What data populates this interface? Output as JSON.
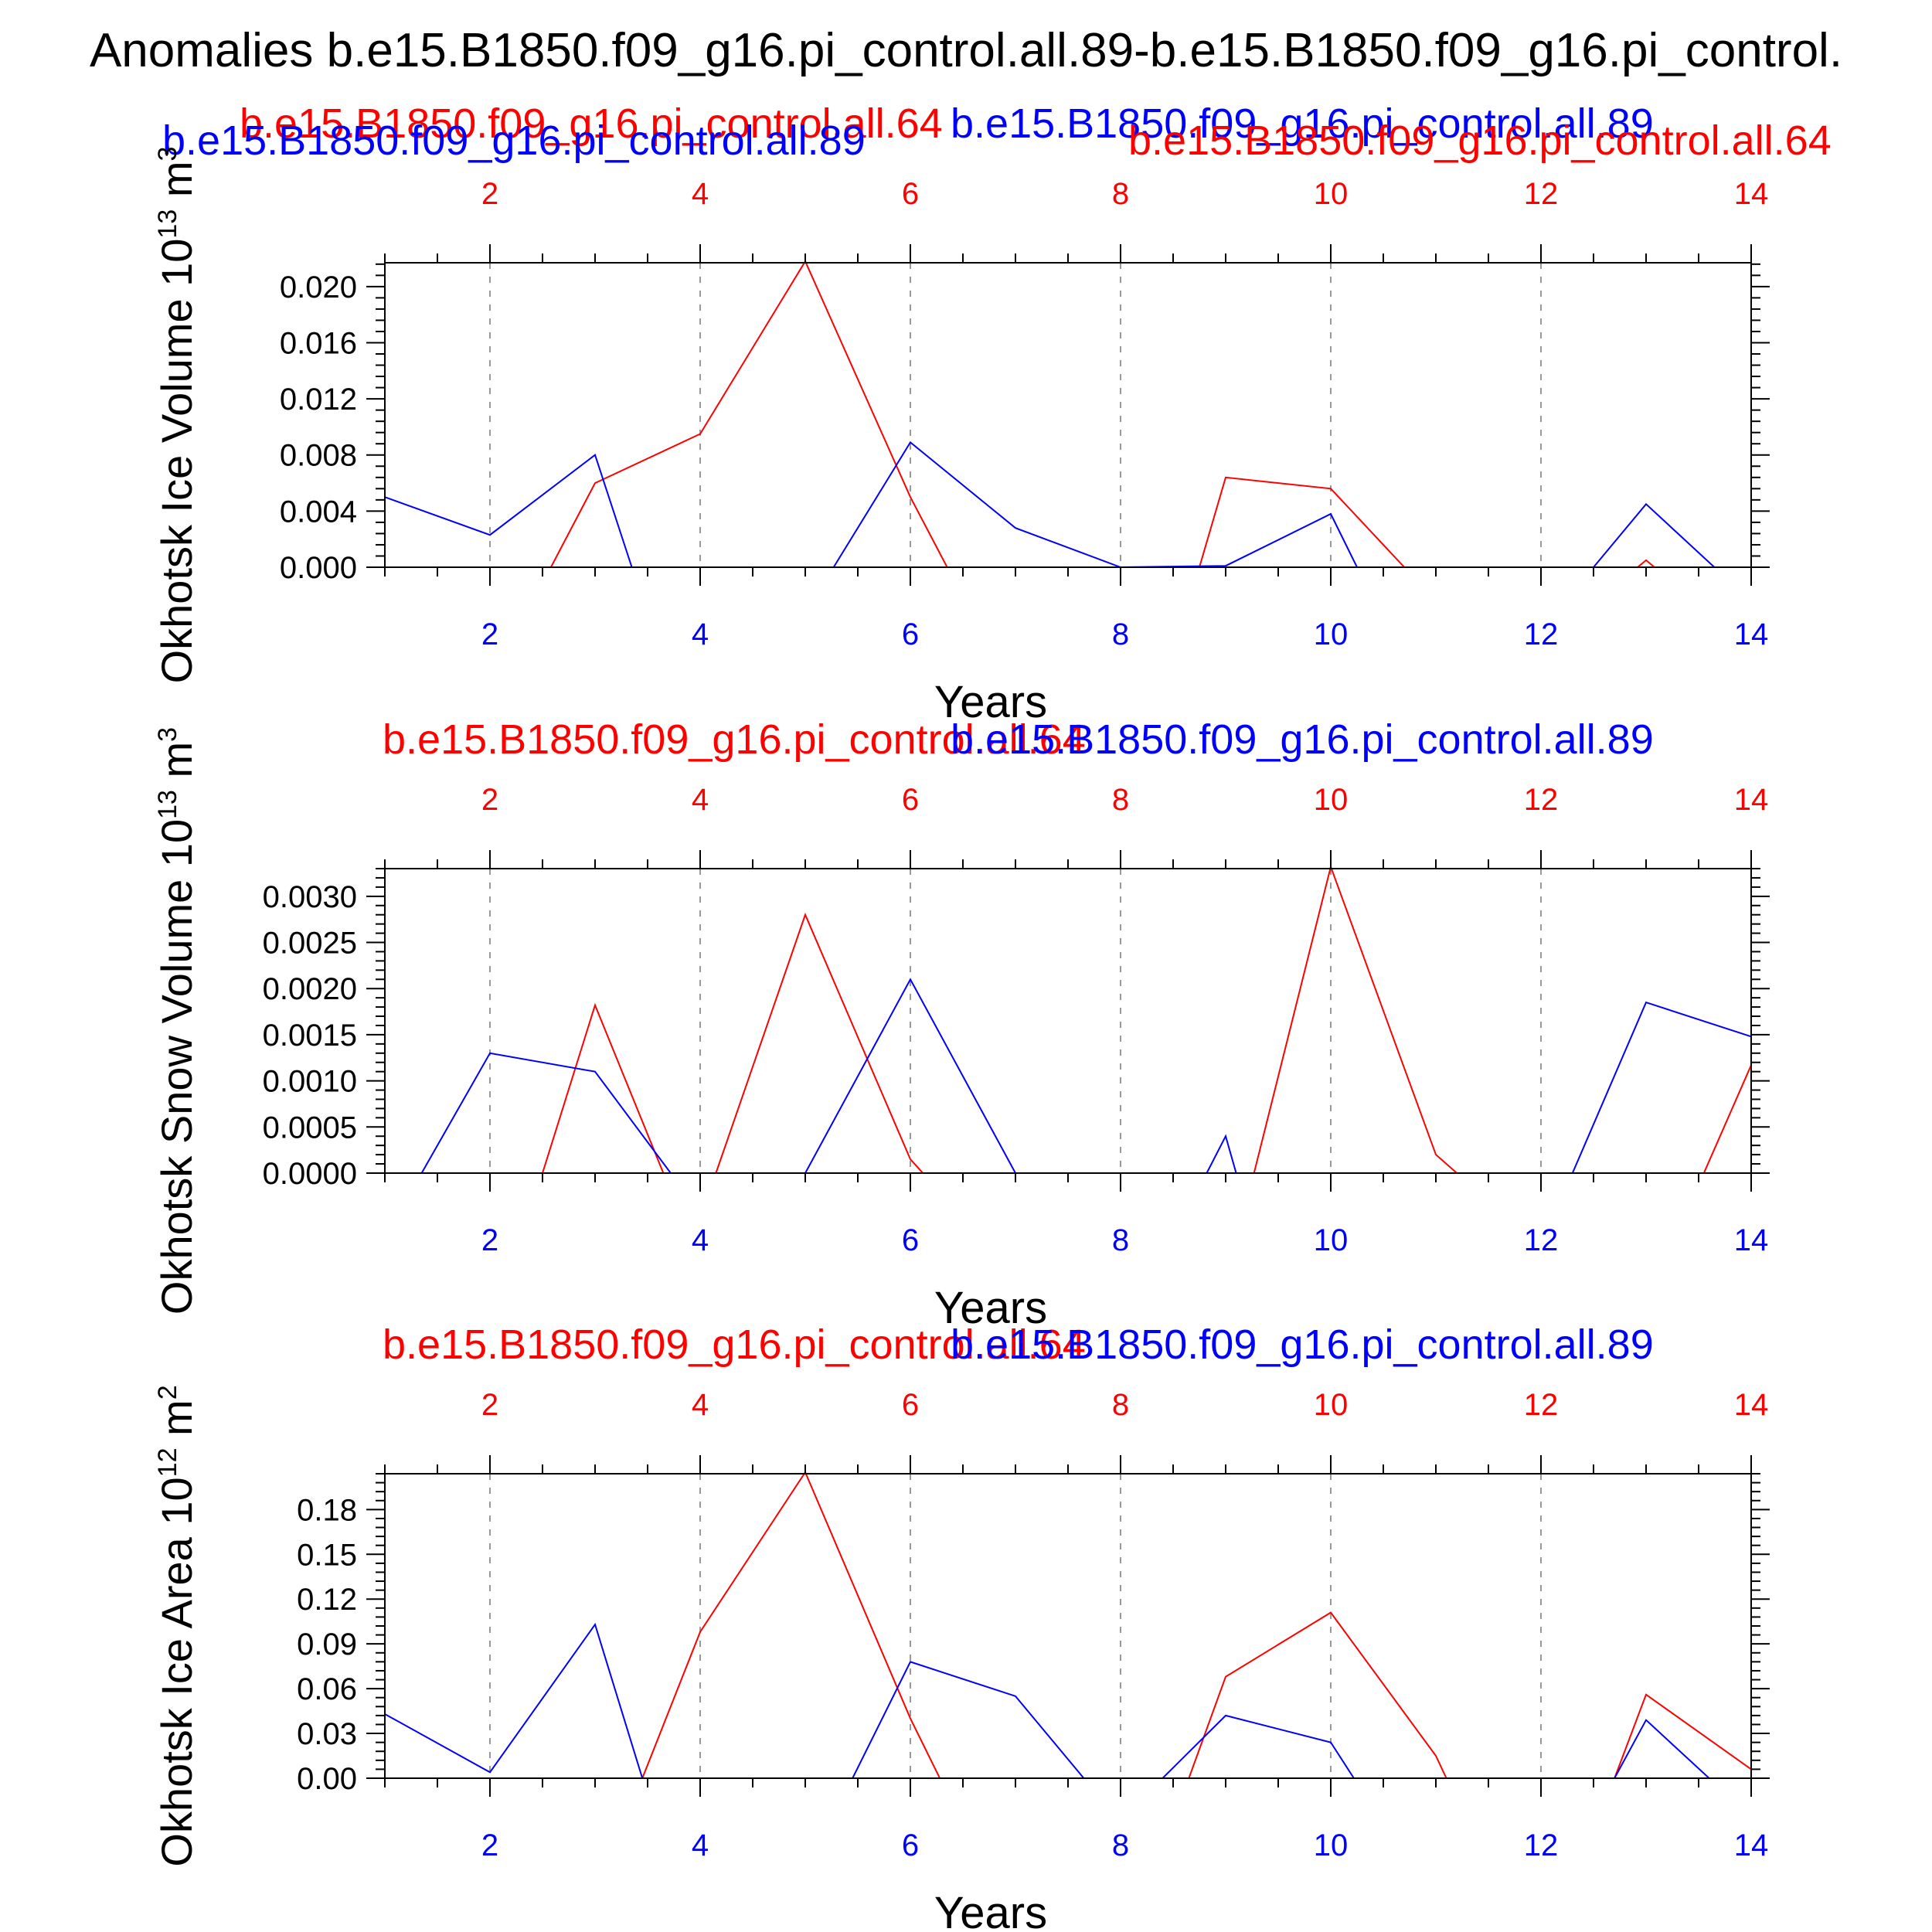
{
  "figure_title": "Anomalies b.e15.B1850.f09_g16.pi_control.all.89-b.e15.B1850.f09_g16.pi_control.",
  "colors": {
    "series_a": "#ff0000",
    "series_b": "#0000ff",
    "axis": "#000000",
    "grid": "#999999"
  },
  "chart_data": [
    {
      "type": "line",
      "id": "ice-volume",
      "ylabel": "Okhotsk Ice Volume 10",
      "yunit_exp": "13",
      "yunit": " m",
      "yunit_sup": "3",
      "xlabel": "Years",
      "xlim": [
        1,
        14
      ],
      "ylim": [
        0,
        0.0217
      ],
      "yticks": [
        "0.000",
        "0.004",
        "0.008",
        "0.012",
        "0.016",
        "0.020"
      ],
      "yticks_values": [
        0,
        0.004,
        0.008,
        0.012,
        0.016,
        0.02
      ],
      "xticks": [
        "2",
        "4",
        "6",
        "8",
        "10",
        "12",
        "14"
      ],
      "xticks_values": [
        2,
        4,
        6,
        8,
        10,
        12,
        14
      ],
      "top_labels": [
        {
          "text": "b.e15.B1850.f09_g16.pi_control.all.64",
          "color": "#ff0000"
        },
        {
          "text": "b.e15.B1850.f09_g16.pi_control.all.89",
          "color": "#0000ff"
        },
        {
          "text": "b.e15.B1850.f09_g16.pi_control.all.89",
          "color": "#0000ff"
        },
        {
          "text": "b.e15.B1850.f09_g16.pi_control.all.64",
          "color": "#ff0000"
        }
      ],
      "series": [
        {
          "color": "#ff0000",
          "x": [
            1,
            2,
            2.58,
            3,
            4,
            5,
            6,
            6.35,
            7,
            8,
            8.75,
            9,
            10,
            10.7,
            11,
            12,
            12.92,
            13,
            13.08,
            14
          ],
          "values": [
            0,
            0,
            0,
            0.006,
            0.0095,
            0.0218,
            0.005,
            0,
            0,
            0,
            0,
            0.0064,
            0.0056,
            0,
            0,
            0,
            0,
            0.0005,
            0,
            0
          ]
        },
        {
          "color": "#0000ff",
          "x": [
            1,
            2,
            3,
            3.35,
            4,
            5,
            5.27,
            6,
            7,
            8,
            9,
            10,
            10.25,
            11,
            12,
            12.5,
            13,
            13.65,
            14
          ],
          "values": [
            0.005,
            0.0023,
            0.008,
            0,
            0,
            0,
            0,
            0.0089,
            0.0028,
            0,
            0.0001,
            0.0038,
            0,
            0,
            0,
            0,
            0.0045,
            0,
            0
          ]
        }
      ]
    },
    {
      "type": "line",
      "id": "snow-volume",
      "ylabel": "Okhotsk Snow Volume 10",
      "yunit_exp": "13",
      "yunit": " m",
      "yunit_sup": "3",
      "xlabel": "Years",
      "xlim": [
        1,
        14
      ],
      "ylim": [
        0,
        0.0033
      ],
      "yticks": [
        "0.0000",
        "0.0005",
        "0.0010",
        "0.0015",
        "0.0020",
        "0.0025",
        "0.0030"
      ],
      "yticks_values": [
        0,
        0.0005,
        0.001,
        0.0015,
        0.002,
        0.0025,
        0.003
      ],
      "xticks": [
        "2",
        "4",
        "6",
        "8",
        "10",
        "12",
        "14"
      ],
      "xticks_values": [
        2,
        4,
        6,
        8,
        10,
        12,
        14
      ],
      "top_labels": [
        {
          "text": "b.e15.B1850.f09_g16.pi_control.all.64",
          "color": "#ff0000"
        },
        {
          "text": "b.e15.B1850.f09_g16.pi_control.all.89",
          "color": "#0000ff"
        }
      ],
      "series": [
        {
          "color": "#ff0000",
          "x": [
            1,
            2,
            2.5,
            3,
            3.65,
            4,
            4.15,
            5,
            6,
            6.12,
            7,
            8,
            9,
            9.27,
            10,
            11,
            11.2,
            12,
            13,
            13.55,
            14
          ],
          "values": [
            0,
            0,
            0,
            0.00182,
            0,
            0,
            0,
            0.0028,
            0.00015,
            0,
            0,
            0,
            0,
            0,
            0.00332,
            0.0002,
            0,
            0,
            0,
            0,
            0.00117
          ]
        },
        {
          "color": "#0000ff",
          "x": [
            1,
            1.35,
            2,
            3,
            3.72,
            4,
            5,
            6,
            7,
            8,
            8.82,
            9,
            9.1,
            10,
            11,
            12,
            12.3,
            13,
            14
          ],
          "values": [
            0,
            0,
            0.0013,
            0.0011,
            0,
            0,
            0,
            0.0021,
            0,
            0,
            0,
            0.0004,
            0,
            0,
            0,
            0,
            0,
            0.00185,
            0.00148
          ]
        }
      ]
    },
    {
      "type": "line",
      "id": "ice-area",
      "ylabel": "Okhotsk Ice Area 10",
      "yunit_exp": "12",
      "yunit": " m",
      "yunit_sup": "2",
      "xlabel": "Years",
      "xlim": [
        1,
        14
      ],
      "ylim": [
        0,
        0.204
      ],
      "yticks": [
        "0.00",
        "0.03",
        "0.06",
        "0.09",
        "0.12",
        "0.15",
        "0.18"
      ],
      "yticks_values": [
        0,
        0.03,
        0.06,
        0.09,
        0.12,
        0.15,
        0.18
      ],
      "xticks": [
        "2",
        "4",
        "6",
        "8",
        "10",
        "12",
        "14"
      ],
      "xticks_values": [
        2,
        4,
        6,
        8,
        10,
        12,
        14
      ],
      "top_labels": [
        {
          "text": "b.e15.B1850.f09_g16.pi_control.all.64",
          "color": "#ff0000"
        },
        {
          "text": "b.e15.B1850.f09_g16.pi_control.all.89",
          "color": "#0000ff"
        }
      ],
      "series": [
        {
          "color": "#ff0000",
          "x": [
            1,
            2,
            3,
            3.45,
            4,
            5,
            6,
            6.28,
            7,
            8,
            8.65,
            9,
            10,
            11,
            11.1,
            12,
            12.7,
            13,
            14
          ],
          "values": [
            0,
            0,
            0,
            0,
            0.098,
            0.205,
            0.04,
            0,
            0,
            0,
            0,
            0.068,
            0.111,
            0.015,
            0,
            0,
            0,
            0.056,
            0.006
          ]
        },
        {
          "color": "#0000ff",
          "x": [
            1,
            2,
            3,
            3.45,
            4,
            5,
            5.45,
            6,
            7,
            7.65,
            8,
            8.4,
            9,
            10,
            10.22,
            11,
            12,
            12.7,
            13,
            13.6,
            14
          ],
          "values": [
            0.043,
            0.004,
            0.103,
            0,
            0,
            0,
            0,
            0.078,
            0.055,
            0,
            0,
            0,
            0.042,
            0.024,
            0,
            0,
            0,
            0,
            0.039,
            0,
            0
          ]
        }
      ]
    }
  ]
}
